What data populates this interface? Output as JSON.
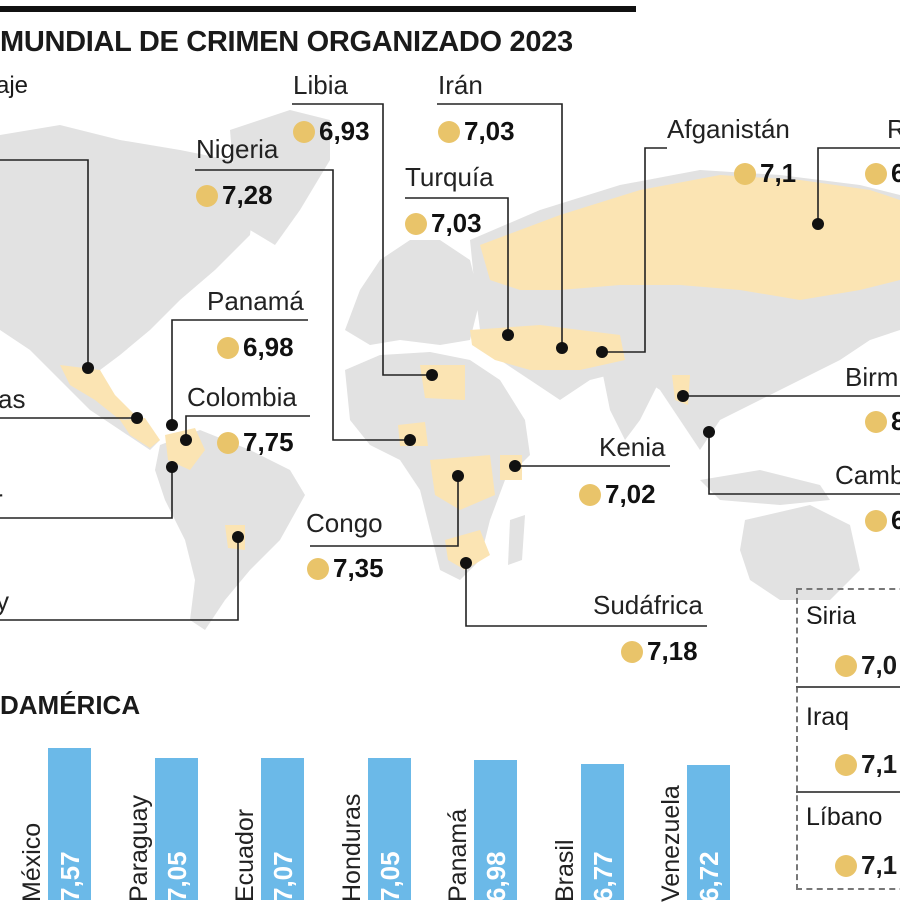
{
  "title": "MUNDIAL DE CRIMEN ORGANIZADO 2023",
  "subtitle": "aje",
  "colors": {
    "highlight": "#fbe4b3",
    "land": "#e2e2e2",
    "dot": "#e9c46a",
    "bar": "#6bb9e8"
  },
  "map_labels": [
    {
      "name": "Libia",
      "value": "6,93"
    },
    {
      "name": "Irán",
      "value": "7,03"
    },
    {
      "name": "Nigeria",
      "value": "7,28"
    },
    {
      "name": "Turquía",
      "value": "7,03"
    },
    {
      "name": "Afganistán",
      "value": "7,1"
    },
    {
      "name": "R",
      "value": "6"
    },
    {
      "name": "Panamá",
      "value": "6,98"
    },
    {
      "name": "Colombia",
      "value": "7,75"
    },
    {
      "name": "as",
      "value": ""
    },
    {
      "name": "r",
      "value": ""
    },
    {
      "name": "Birm",
      "value": "8"
    },
    {
      "name": "Kenia",
      "value": "7,02"
    },
    {
      "name": "Camb",
      "value": "6"
    },
    {
      "name": "Congo",
      "value": "7,35"
    },
    {
      "name": "y",
      "value": ""
    },
    {
      "name": "Sudáfrica",
      "value": "7,18"
    }
  ],
  "side_box": [
    {
      "name": "Siria",
      "value": "7,0"
    },
    {
      "name": "Iraq",
      "value": "7,1"
    },
    {
      "name": "Líbano",
      "value": "7,1"
    }
  ],
  "chart_data": {
    "type": "bar",
    "title": "DAMÉRICA",
    "categories": [
      "México",
      "Paraguay",
      "Ecuador",
      "Honduras",
      "Panamá",
      "Brasil",
      "Venezuela"
    ],
    "values": [
      7.57,
      7.05,
      7.07,
      7.05,
      6.98,
      6.77,
      6.72
    ],
    "value_labels": [
      "7,57",
      "7,05",
      "7,07",
      "7,05",
      "6,98",
      "6,77",
      "6,72"
    ],
    "ylim": [
      0,
      8
    ]
  }
}
